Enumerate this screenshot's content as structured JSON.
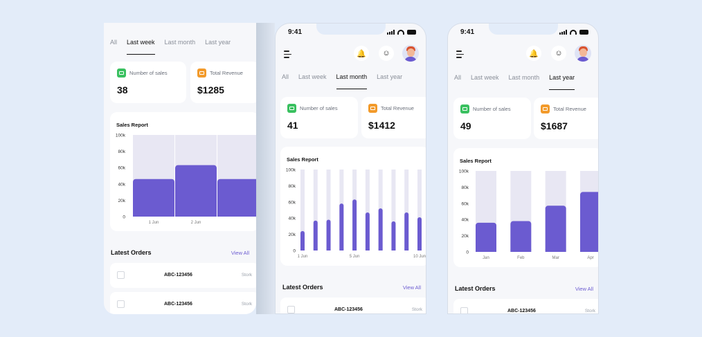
{
  "status_time": "9:41",
  "tabs": [
    "All",
    "Last week",
    "Last month",
    "Last year"
  ],
  "stat_labels": {
    "sales": "Number of sales",
    "revenue": "Total Revenue"
  },
  "chart_title": "Sales Report",
  "orders_title": "Latest Orders",
  "view_all": "View All",
  "colors": {
    "accent": "#6b5bd0",
    "bar_track": "#e8e7f3",
    "green": "#39c05f",
    "orange": "#f29a2a"
  },
  "icons": [
    "menu-icon",
    "bell-icon",
    "chat-icon",
    "avatar",
    "wifi-icon",
    "battery-icon"
  ],
  "screens": [
    {
      "active_tab": "Last week",
      "sales": "38",
      "revenue": "$1285",
      "orders": [
        {
          "id": "ABC-123456",
          "status": "Stork"
        },
        {
          "id": "ABC-123456",
          "status": "Stork"
        }
      ]
    },
    {
      "active_tab": "Last month",
      "sales": "41",
      "revenue": "$1412",
      "orders": [
        {
          "id": "ABC-123456",
          "status": "Stork"
        }
      ]
    },
    {
      "active_tab": "Last year",
      "sales": "49",
      "revenue": "$1687",
      "orders": [
        {
          "id": "ABC-123456",
          "status": "Stork"
        }
      ]
    }
  ],
  "chart_data": [
    {
      "type": "bar",
      "title": "Sales Report",
      "y_ticks": [
        "0",
        "20k",
        "40k",
        "60k",
        "80k",
        "100k"
      ],
      "ylim": [
        0,
        100000
      ],
      "categories": [
        "1 Jun",
        "2 Jun",
        "3 Jun"
      ],
      "x_labels_shown": [
        "1 Jun",
        "2 Jun"
      ],
      "values": [
        46000,
        63000,
        46000
      ]
    },
    {
      "type": "bar",
      "title": "Sales Report",
      "y_ticks": [
        "0",
        "20k",
        "40k",
        "60k",
        "80k",
        "100k"
      ],
      "ylim": [
        0,
        100000
      ],
      "categories": [
        "1 Jun",
        "2 Jun",
        "3 Jun",
        "4 Jun",
        "5 Jun",
        "6 Jun",
        "7 Jun",
        "8 Jun",
        "9 Jun",
        "10 Jun"
      ],
      "x_labels_shown": [
        "1 Jun",
        "5 Jun",
        "10 Jun"
      ],
      "values": [
        24000,
        37000,
        38000,
        58000,
        63000,
        47000,
        52000,
        36000,
        47000,
        41000
      ]
    },
    {
      "type": "bar",
      "title": "Sales Report",
      "y_ticks": [
        "0",
        "20k",
        "40k",
        "60k",
        "80k",
        "100k"
      ],
      "ylim": [
        0,
        100000
      ],
      "categories": [
        "Jan",
        "Feb",
        "Mar",
        "Apr"
      ],
      "x_labels_shown": [
        "Jan",
        "Feb",
        "Mar",
        "Apr"
      ],
      "values": [
        36000,
        38000,
        57000,
        74000
      ]
    }
  ]
}
